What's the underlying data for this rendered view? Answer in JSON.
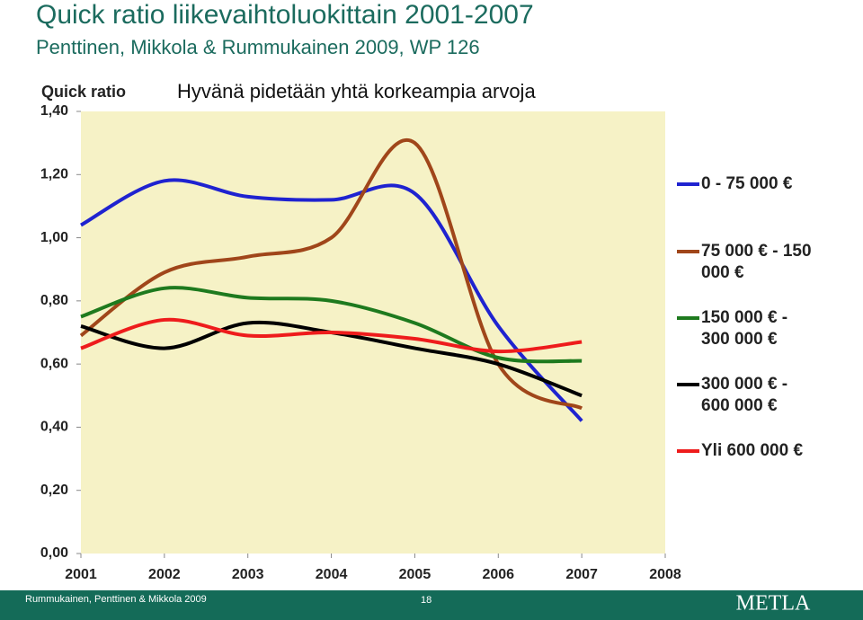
{
  "title": "Quick ratio liikevaihtoluokittain 2001-2007",
  "subtitle": "Penttinen, Mikkola & Rummukainen 2009, WP 126",
  "chart_data": {
    "type": "line",
    "y_label": "Quick ratio",
    "annotation": "Hyvänä pidetään yhtä korkeampia arvoja",
    "x": [
      2001,
      2002,
      2003,
      2004,
      2005,
      2006,
      2007
    ],
    "xlim": [
      2001,
      2008
    ],
    "xticks": [
      2001,
      2002,
      2003,
      2004,
      2005,
      2006,
      2007,
      2008
    ],
    "ylim": [
      0,
      1.4
    ],
    "yticks": [
      {
        "value": 0,
        "label": "0,00"
      },
      {
        "value": 0.2,
        "label": "0,20"
      },
      {
        "value": 0.4,
        "label": "0,40"
      },
      {
        "value": 0.6,
        "label": "0,60"
      },
      {
        "value": 0.8,
        "label": "0,80"
      },
      {
        "value": 1.0,
        "label": "1,00"
      },
      {
        "value": 1.2,
        "label": "1,20"
      },
      {
        "value": 1.4,
        "label": "1,40"
      }
    ],
    "series": [
      {
        "name": "0 - 75 000 €",
        "color": "#1f23d0",
        "values": [
          1.04,
          1.18,
          1.13,
          1.12,
          1.14,
          0.72,
          0.42
        ]
      },
      {
        "name": "75 000 € - 150 000 €",
        "color": "#a0461a",
        "values": [
          0.69,
          0.89,
          0.94,
          1.0,
          1.3,
          0.6,
          0.46
        ]
      },
      {
        "name": "150 000 € - 300 000 €",
        "color": "#1e7a1e",
        "values": [
          0.75,
          0.84,
          0.81,
          0.8,
          0.73,
          0.62,
          0.61
        ]
      },
      {
        "name": "300 000 € - 600 000 €",
        "color": "#000000",
        "values": [
          0.72,
          0.65,
          0.73,
          0.7,
          0.65,
          0.6,
          0.5
        ]
      },
      {
        "name": "Yli 600 000 €",
        "color": "#ee1c1c",
        "values": [
          0.65,
          0.74,
          0.69,
          0.7,
          0.68,
          0.64,
          0.67
        ]
      }
    ]
  },
  "footer": {
    "source": "Rummukainen, Penttinen & Mikkola 2009",
    "page": "18",
    "logo": "METLA"
  }
}
